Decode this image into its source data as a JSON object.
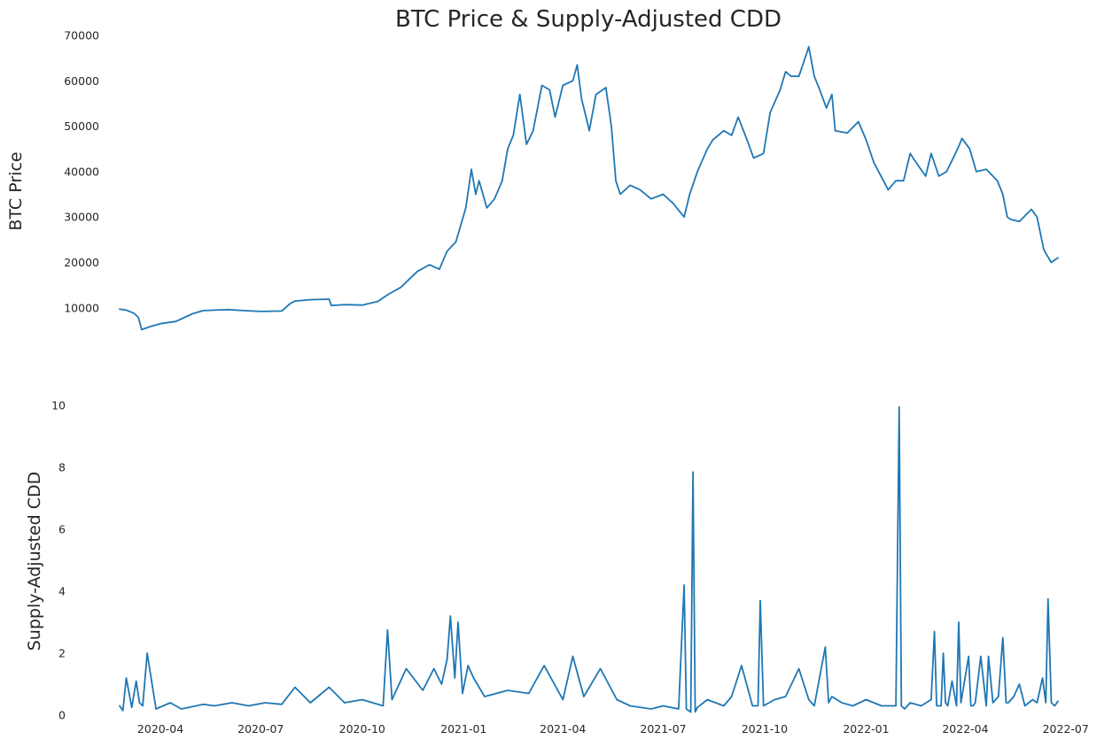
{
  "chart_data": [
    {
      "type": "line",
      "title": "BTC Price & Supply-Adjusted CDD",
      "ylabel": "BTC  Price",
      "xlabel": "",
      "grid": false,
      "legend": "none",
      "xlim": [
        "2020-02-24",
        "2022-06-24"
      ],
      "ylim": [
        4500,
        70000
      ],
      "yticks": [
        10000,
        20000,
        30000,
        40000,
        50000,
        60000,
        70000
      ],
      "color": "#1f77b4",
      "series": [
        {
          "x": [
            "2020-02-24",
            "2020-03-01",
            "2020-03-08",
            "2020-03-12",
            "2020-03-15",
            "2020-03-22",
            "2020-04-01",
            "2020-04-15",
            "2020-04-30",
            "2020-05-10",
            "2020-05-20",
            "2020-06-01",
            "2020-06-15",
            "2020-07-01",
            "2020-07-20",
            "2020-07-28",
            "2020-08-01",
            "2020-08-15",
            "2020-09-01",
            "2020-09-03",
            "2020-09-15",
            "2020-10-01",
            "2020-10-15",
            "2020-10-25",
            "2020-11-05",
            "2020-11-20",
            "2020-12-01",
            "2020-12-10",
            "2020-12-17",
            "2020-12-25",
            "2021-01-03",
            "2021-01-08",
            "2021-01-12",
            "2021-01-15",
            "2021-01-22",
            "2021-01-29",
            "2021-02-05",
            "2021-02-10",
            "2021-02-15",
            "2021-02-21",
            "2021-02-27",
            "2021-03-05",
            "2021-03-13",
            "2021-03-20",
            "2021-03-25",
            "2021-04-01",
            "2021-04-10",
            "2021-04-14",
            "2021-04-18",
            "2021-04-25",
            "2021-05-01",
            "2021-05-10",
            "2021-05-15",
            "2021-05-19",
            "2021-05-23",
            "2021-06-01",
            "2021-06-10",
            "2021-06-20",
            "2021-07-01",
            "2021-07-10",
            "2021-07-20",
            "2021-07-25",
            "2021-08-01",
            "2021-08-10",
            "2021-08-15",
            "2021-08-25",
            "2021-09-01",
            "2021-09-07",
            "2021-09-15",
            "2021-09-21",
            "2021-09-30",
            "2021-10-06",
            "2021-10-15",
            "2021-10-20",
            "2021-10-25",
            "2021-11-01",
            "2021-11-08",
            "2021-11-10",
            "2021-11-15",
            "2021-11-20",
            "2021-11-26",
            "2021-12-01",
            "2021-12-04",
            "2021-12-15",
            "2021-12-25",
            "2022-01-01",
            "2022-01-08",
            "2022-01-21",
            "2022-01-28",
            "2022-02-04",
            "2022-02-10",
            "2022-02-14",
            "2022-02-24",
            "2022-03-01",
            "2022-03-08",
            "2022-03-15",
            "2022-03-25",
            "2022-03-29",
            "2022-04-05",
            "2022-04-11",
            "2022-04-20",
            "2022-04-30",
            "2022-05-05",
            "2022-05-09",
            "2022-05-12",
            "2022-05-20",
            "2022-05-31",
            "2022-06-05",
            "2022-06-11",
            "2022-06-13",
            "2022-06-18",
            "2022-06-21",
            "2022-06-24"
          ],
          "values": [
            9700,
            9500,
            8800,
            7900,
            5200,
            5800,
            6500,
            7000,
            8700,
            9400,
            9500,
            9600,
            9400,
            9200,
            9300,
            11000,
            11500,
            11800,
            11900,
            10500,
            10700,
            10600,
            11400,
            13000,
            14500,
            18000,
            19500,
            18500,
            22500,
            24500,
            32000,
            40500,
            35000,
            38000,
            32000,
            34000,
            38000,
            45000,
            48000,
            57000,
            46000,
            49000,
            59000,
            58000,
            52000,
            59000,
            60000,
            63500,
            56000,
            49000,
            57000,
            58500,
            50000,
            38000,
            35000,
            37000,
            36000,
            34000,
            35000,
            33000,
            30000,
            35000,
            40000,
            45000,
            47000,
            49000,
            48000,
            52000,
            47000,
            43000,
            44000,
            53000,
            58000,
            62000,
            61000,
            61000,
            66000,
            67500,
            61000,
            58000,
            54000,
            57000,
            49000,
            48500,
            51000,
            47000,
            42000,
            36000,
            38000,
            38000,
            44000,
            42500,
            39000,
            44000,
            39000,
            40000,
            45000,
            47300,
            45000,
            40000,
            40500,
            38000,
            35000,
            30000,
            29500,
            29000,
            31700,
            30000,
            23000,
            22000,
            20000,
            20500,
            21000
          ]
        }
      ]
    },
    {
      "type": "line",
      "title": "",
      "ylabel": "Supply-Adjusted CDD",
      "xlabel": "",
      "grid": false,
      "legend": "none",
      "xlim": [
        "2020-02-24",
        "2022-06-24"
      ],
      "ylim": [
        0,
        10
      ],
      "yticks": [
        0,
        2,
        4,
        6,
        8,
        10
      ],
      "xticks": [
        "2020-04",
        "2020-07",
        "2020-10",
        "2021-01",
        "2021-04",
        "2021-07",
        "2021-10",
        "2022-01",
        "2022-04",
        "2022-07"
      ],
      "color": "#1f77b4",
      "series": [
        {
          "x": [
            "2020-02-24",
            "2020-02-27",
            "2020-03-01",
            "2020-03-06",
            "2020-03-10",
            "2020-03-13",
            "2020-03-16",
            "2020-03-20",
            "2020-03-28",
            "2020-04-10",
            "2020-04-20",
            "2020-05-10",
            "2020-05-20",
            "2020-06-05",
            "2020-06-20",
            "2020-07-05",
            "2020-07-20",
            "2020-08-01",
            "2020-08-15",
            "2020-09-01",
            "2020-09-15",
            "2020-10-01",
            "2020-10-20",
            "2020-10-24",
            "2020-10-28",
            "2020-11-10",
            "2020-11-25",
            "2020-12-05",
            "2020-12-12",
            "2020-12-17",
            "2020-12-20",
            "2020-12-24",
            "2020-12-27",
            "2020-12-31",
            "2021-01-05",
            "2021-01-10",
            "2021-01-20",
            "2021-02-10",
            "2021-03-01",
            "2021-03-15",
            "2021-04-01",
            "2021-04-10",
            "2021-04-20",
            "2021-05-05",
            "2021-05-20",
            "2021-06-01",
            "2021-06-20",
            "2021-07-01",
            "2021-07-15",
            "2021-07-20",
            "2021-07-22",
            "2021-07-26",
            "2021-07-28",
            "2021-07-30",
            "2021-08-01",
            "2021-08-10",
            "2021-08-25",
            "2021-09-01",
            "2021-09-10",
            "2021-09-20",
            "2021-09-25",
            "2021-09-27",
            "2021-09-30",
            "2021-10-10",
            "2021-10-20",
            "2021-11-01",
            "2021-11-10",
            "2021-11-15",
            "2021-11-25",
            "2021-11-28",
            "2021-12-01",
            "2021-12-10",
            "2021-12-20",
            "2022-01-01",
            "2022-01-15",
            "2022-01-28",
            "2022-01-31",
            "2022-02-02",
            "2022-02-05",
            "2022-02-10",
            "2022-02-20",
            "2022-03-01",
            "2022-03-04",
            "2022-03-06",
            "2022-03-10",
            "2022-03-12",
            "2022-03-14",
            "2022-03-16",
            "2022-03-20",
            "2022-03-24",
            "2022-03-26",
            "2022-03-28",
            "2022-04-04",
            "2022-04-06",
            "2022-04-08",
            "2022-04-10",
            "2022-04-15",
            "2022-04-20",
            "2022-04-22",
            "2022-04-26",
            "2022-05-01",
            "2022-05-05",
            "2022-05-08",
            "2022-05-10",
            "2022-05-15",
            "2022-05-20",
            "2022-05-25",
            "2022-06-01",
            "2022-06-05",
            "2022-06-10",
            "2022-06-13",
            "2022-06-15",
            "2022-06-18",
            "2022-06-21",
            "2022-06-24"
          ],
          "values": [
            0.3,
            0.15,
            1.2,
            0.25,
            1.1,
            0.4,
            0.3,
            2.0,
            0.2,
            0.4,
            0.2,
            0.35,
            0.3,
            0.4,
            0.3,
            0.4,
            0.35,
            0.9,
            0.4,
            0.9,
            0.4,
            0.5,
            0.3,
            2.75,
            0.5,
            1.5,
            0.8,
            1.5,
            1.0,
            1.8,
            3.2,
            1.2,
            3.0,
            0.7,
            1.6,
            1.2,
            0.6,
            0.8,
            0.7,
            1.6,
            0.5,
            1.9,
            0.6,
            1.5,
            0.5,
            0.3,
            0.2,
            0.3,
            0.2,
            4.2,
            0.2,
            0.1,
            7.85,
            0.1,
            0.25,
            0.5,
            0.3,
            0.6,
            1.6,
            0.3,
            0.3,
            3.7,
            0.3,
            0.5,
            0.6,
            1.5,
            0.5,
            0.3,
            2.2,
            0.4,
            0.6,
            0.4,
            0.3,
            0.5,
            0.3,
            0.3,
            9.95,
            0.3,
            0.2,
            0.4,
            0.3,
            0.5,
            2.7,
            0.3,
            0.3,
            2.0,
            0.4,
            0.3,
            1.1,
            0.3,
            3.0,
            0.4,
            1.9,
            0.3,
            0.3,
            0.4,
            1.9,
            0.3,
            1.9,
            0.4,
            0.6,
            2.5,
            0.4,
            0.4,
            0.6,
            1.0,
            0.3,
            0.5,
            0.4,
            1.2,
            0.4,
            3.75,
            0.4,
            0.3,
            0.45
          ]
        }
      ]
    }
  ]
}
